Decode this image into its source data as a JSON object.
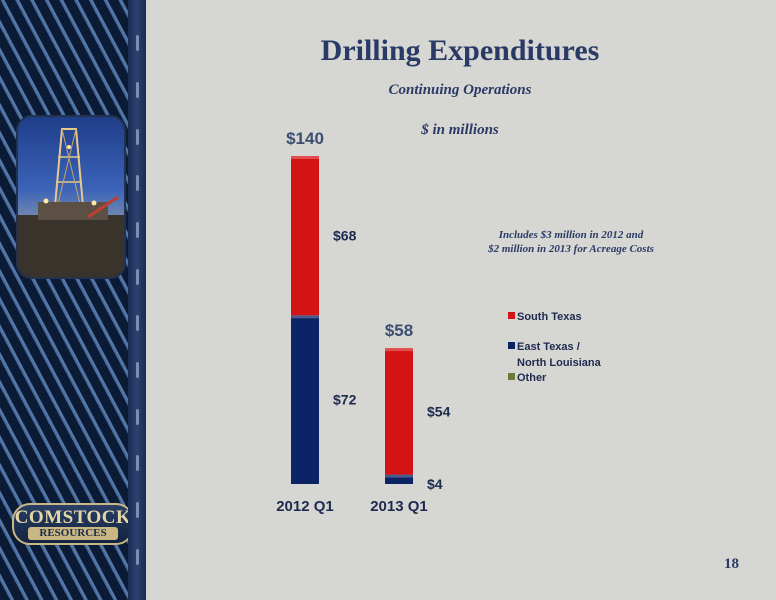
{
  "title": "Drilling Expenditures",
  "subtitle": "Continuing Operations",
  "units": "$ in millions",
  "note": [
    "Includes $3 million in 2012 and",
    "$2 million in 2013 for Acreage Costs"
  ],
  "page_number": "18",
  "logo": {
    "line1": "COMSTOCK",
    "line2": "RESOURCES"
  },
  "colors": {
    "south_texas": "#d41414",
    "east_texas": "#0c2466",
    "other": "#6e7a3a",
    "title": "#2a3a66"
  },
  "chart_data": {
    "type": "bar",
    "stacked": true,
    "categories": [
      "2012 Q1",
      "2013 Q1"
    ],
    "series": [
      {
        "name": "South Texas",
        "color": "#d41414",
        "values": [
          68,
          54
        ],
        "labels": [
          "$68",
          "$54"
        ]
      },
      {
        "name": "East Texas / North Louisiana",
        "legend_lines": [
          "East Texas /",
          "North Louisiana"
        ],
        "color": "#0c2466",
        "values": [
          72,
          4
        ],
        "labels": [
          "$72",
          "$4"
        ]
      },
      {
        "name": "Other",
        "color": "#6e7a3a",
        "values": [
          0,
          0
        ],
        "labels": [
          "",
          ""
        ]
      }
    ],
    "totals": [
      "$140",
      "$58"
    ],
    "ylim": [
      0,
      140
    ],
    "grid": false,
    "legend_position": "right"
  }
}
